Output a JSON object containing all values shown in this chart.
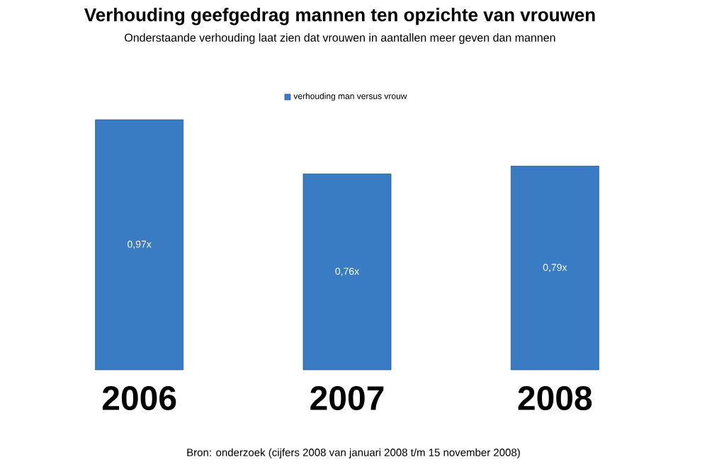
{
  "chart_data": {
    "type": "bar",
    "title": "Verhouding geefgedrag mannen ten opzichte van vrouwen",
    "subtitle": "Onderstaande verhouding laat zien dat vrouwen in aantallen meer geven dan mannen",
    "categories": [
      "2006",
      "2007",
      "2008"
    ],
    "series": [
      {
        "name": "verhouding man versus vrouw",
        "color": "#3a7cc4",
        "values": [
          0.97,
          0.76,
          0.79
        ],
        "value_labels": [
          "0,97x",
          "0,76x",
          "0,79x"
        ]
      }
    ],
    "legend": "top",
    "annotations": [
      "Bron: onderzoek (cijfers 2008 van januari 2008 t/m 15 november 2008)"
    ]
  }
}
